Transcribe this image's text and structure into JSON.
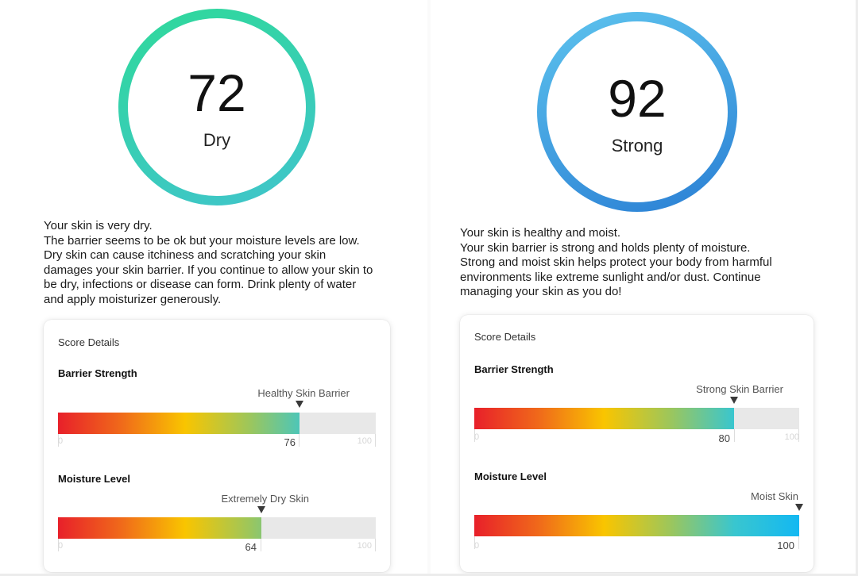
{
  "colors": {
    "ring_left_start": "#2fd99a",
    "ring_left_end": "#40c4cc",
    "ring_right_start": "#5ec4ee",
    "ring_right_end": "#2a7fd4",
    "gradient_stops": [
      "#e8202a",
      "#f06a1a",
      "#f9c500",
      "#9ec65a",
      "#39c6cf",
      "#13b8f2"
    ]
  },
  "left": {
    "score": "72",
    "status": "Dry",
    "description": [
      "Your skin is very dry.",
      "The barrier seems to be ok but your moisture levels are low.",
      "Dry skin can cause itchiness and scratching your skin",
      "damages your skin barrier. If you continue to allow your skin to",
      "be dry, infections or disease can form. Drink plenty of water",
      "and apply moisturizer generously."
    ],
    "card": {
      "title": "Score Details",
      "metrics": [
        {
          "label": "Barrier Strength",
          "marker": "Healthy Skin Barrier",
          "value": 76,
          "value_text": "76",
          "min": "0",
          "max": "100"
        },
        {
          "label": "Moisture Level",
          "marker": "Extremely Dry Skin",
          "value": 64,
          "value_text": "64",
          "min": "0",
          "max": "100"
        }
      ]
    }
  },
  "right": {
    "score": "92",
    "status": "Strong",
    "description": [
      "Your skin is healthy and moist.",
      "Your skin barrier is strong and holds plenty of moisture.",
      "Strong and moist skin helps protect your body from harmful",
      "environments like extreme sunlight and/or dust. Continue",
      "managing your skin as you do!"
    ],
    "card": {
      "title": "Score Details",
      "metrics": [
        {
          "label": "Barrier Strength",
          "marker": "Strong Skin Barrier",
          "value": 80,
          "value_text": "80",
          "min": "0",
          "max": "100"
        },
        {
          "label": "Moisture Level",
          "marker": "Moist Skin",
          "value": 100,
          "value_text": "100",
          "min": "0",
          "max": "100"
        }
      ]
    }
  }
}
